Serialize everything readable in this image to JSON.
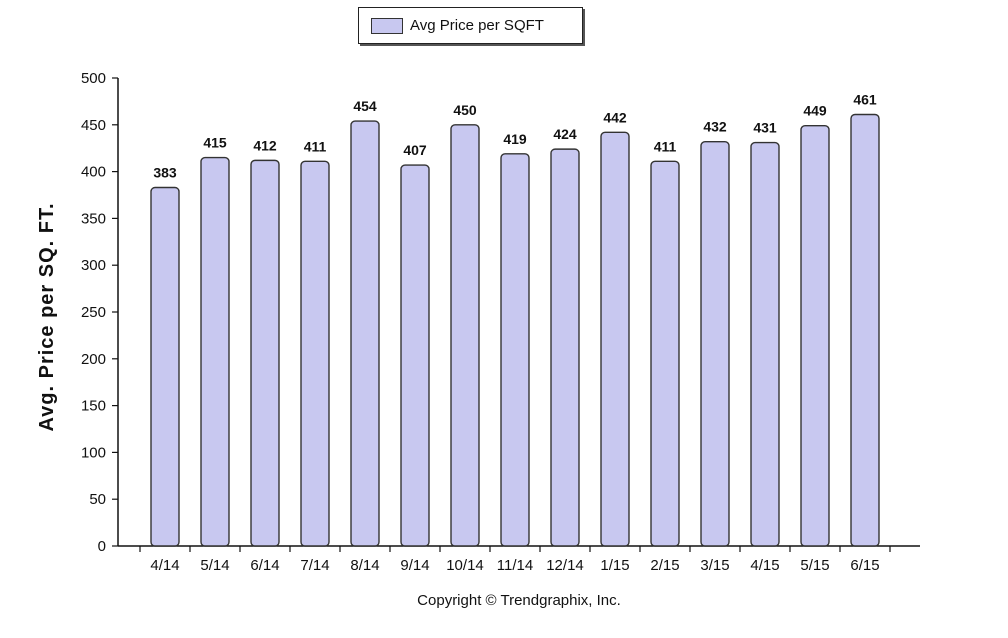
{
  "chart_data": {
    "type": "bar",
    "categories": [
      "4/14",
      "5/14",
      "6/14",
      "7/14",
      "8/14",
      "9/14",
      "10/14",
      "11/14",
      "12/14",
      "1/15",
      "2/15",
      "3/15",
      "4/15",
      "5/15",
      "6/15"
    ],
    "series": [
      {
        "name": "Avg Price per SQFT",
        "values": [
          383,
          415,
          412,
          411,
          454,
          407,
          450,
          419,
          424,
          442,
          411,
          432,
          431,
          449,
          461
        ]
      }
    ],
    "ylabel": "Avg. Price per SQ. FT.",
    "xlabel": "",
    "ylim": [
      0,
      500
    ],
    "yticks": [
      0,
      50,
      100,
      150,
      200,
      250,
      300,
      350,
      400,
      450,
      500
    ],
    "grid": false,
    "legend": "top-center",
    "bar_color": "#c8c8f0",
    "bar_stroke": "#333333"
  },
  "footer": {
    "copyright": "Copyright © Trendgraphix, Inc."
  }
}
